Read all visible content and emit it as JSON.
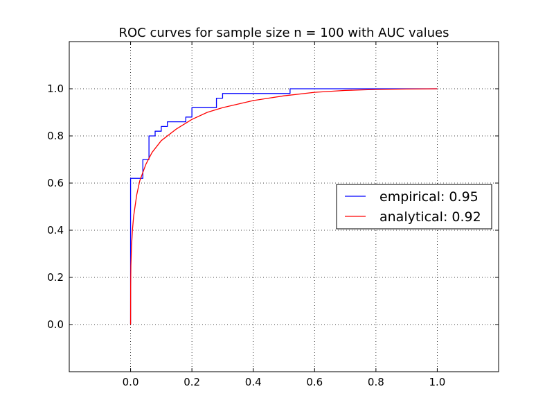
{
  "chart_data": {
    "type": "line",
    "title": "ROC curves for sample size n = 100 with AUC values",
    "xlabel": "",
    "ylabel": "",
    "xlim": [
      -0.2,
      1.2
    ],
    "ylim": [
      -0.2,
      1.2
    ],
    "grid": true,
    "legend_position": "center-right",
    "x_ticks": [
      "0.0",
      "0.2",
      "0.4",
      "0.6",
      "0.8",
      "1.0"
    ],
    "y_ticks": [
      "0.0",
      "0.2",
      "0.4",
      "0.6",
      "0.8",
      "1.0"
    ],
    "series": [
      {
        "name": "empirical: 0.95",
        "color": "#0000ff",
        "style": "step",
        "points": [
          [
            0.0,
            0.0
          ],
          [
            0.0,
            0.62
          ],
          [
            0.04,
            0.62
          ],
          [
            0.04,
            0.7
          ],
          [
            0.06,
            0.7
          ],
          [
            0.06,
            0.8
          ],
          [
            0.08,
            0.8
          ],
          [
            0.08,
            0.82
          ],
          [
            0.1,
            0.82
          ],
          [
            0.1,
            0.84
          ],
          [
            0.12,
            0.84
          ],
          [
            0.12,
            0.86
          ],
          [
            0.18,
            0.86
          ],
          [
            0.18,
            0.88
          ],
          [
            0.2,
            0.88
          ],
          [
            0.2,
            0.92
          ],
          [
            0.28,
            0.92
          ],
          [
            0.28,
            0.96
          ],
          [
            0.3,
            0.96
          ],
          [
            0.3,
            0.98
          ],
          [
            0.52,
            0.98
          ],
          [
            0.52,
            1.0
          ],
          [
            1.0,
            1.0
          ]
        ]
      },
      {
        "name": "analytical: 0.92",
        "color": "#ff0000",
        "style": "curve",
        "points": [
          [
            0.0,
            0.0
          ],
          [
            0.0002,
            0.16
          ],
          [
            0.001,
            0.25
          ],
          [
            0.003,
            0.33
          ],
          [
            0.006,
            0.4
          ],
          [
            0.01,
            0.46
          ],
          [
            0.02,
            0.55
          ],
          [
            0.03,
            0.61
          ],
          [
            0.05,
            0.68
          ],
          [
            0.07,
            0.73
          ],
          [
            0.1,
            0.78
          ],
          [
            0.15,
            0.83
          ],
          [
            0.2,
            0.87
          ],
          [
            0.25,
            0.9
          ],
          [
            0.3,
            0.92
          ],
          [
            0.4,
            0.95
          ],
          [
            0.5,
            0.97
          ],
          [
            0.6,
            0.985
          ],
          [
            0.7,
            0.993
          ],
          [
            0.8,
            0.997
          ],
          [
            0.9,
            0.999
          ],
          [
            1.0,
            1.0
          ]
        ]
      }
    ]
  }
}
